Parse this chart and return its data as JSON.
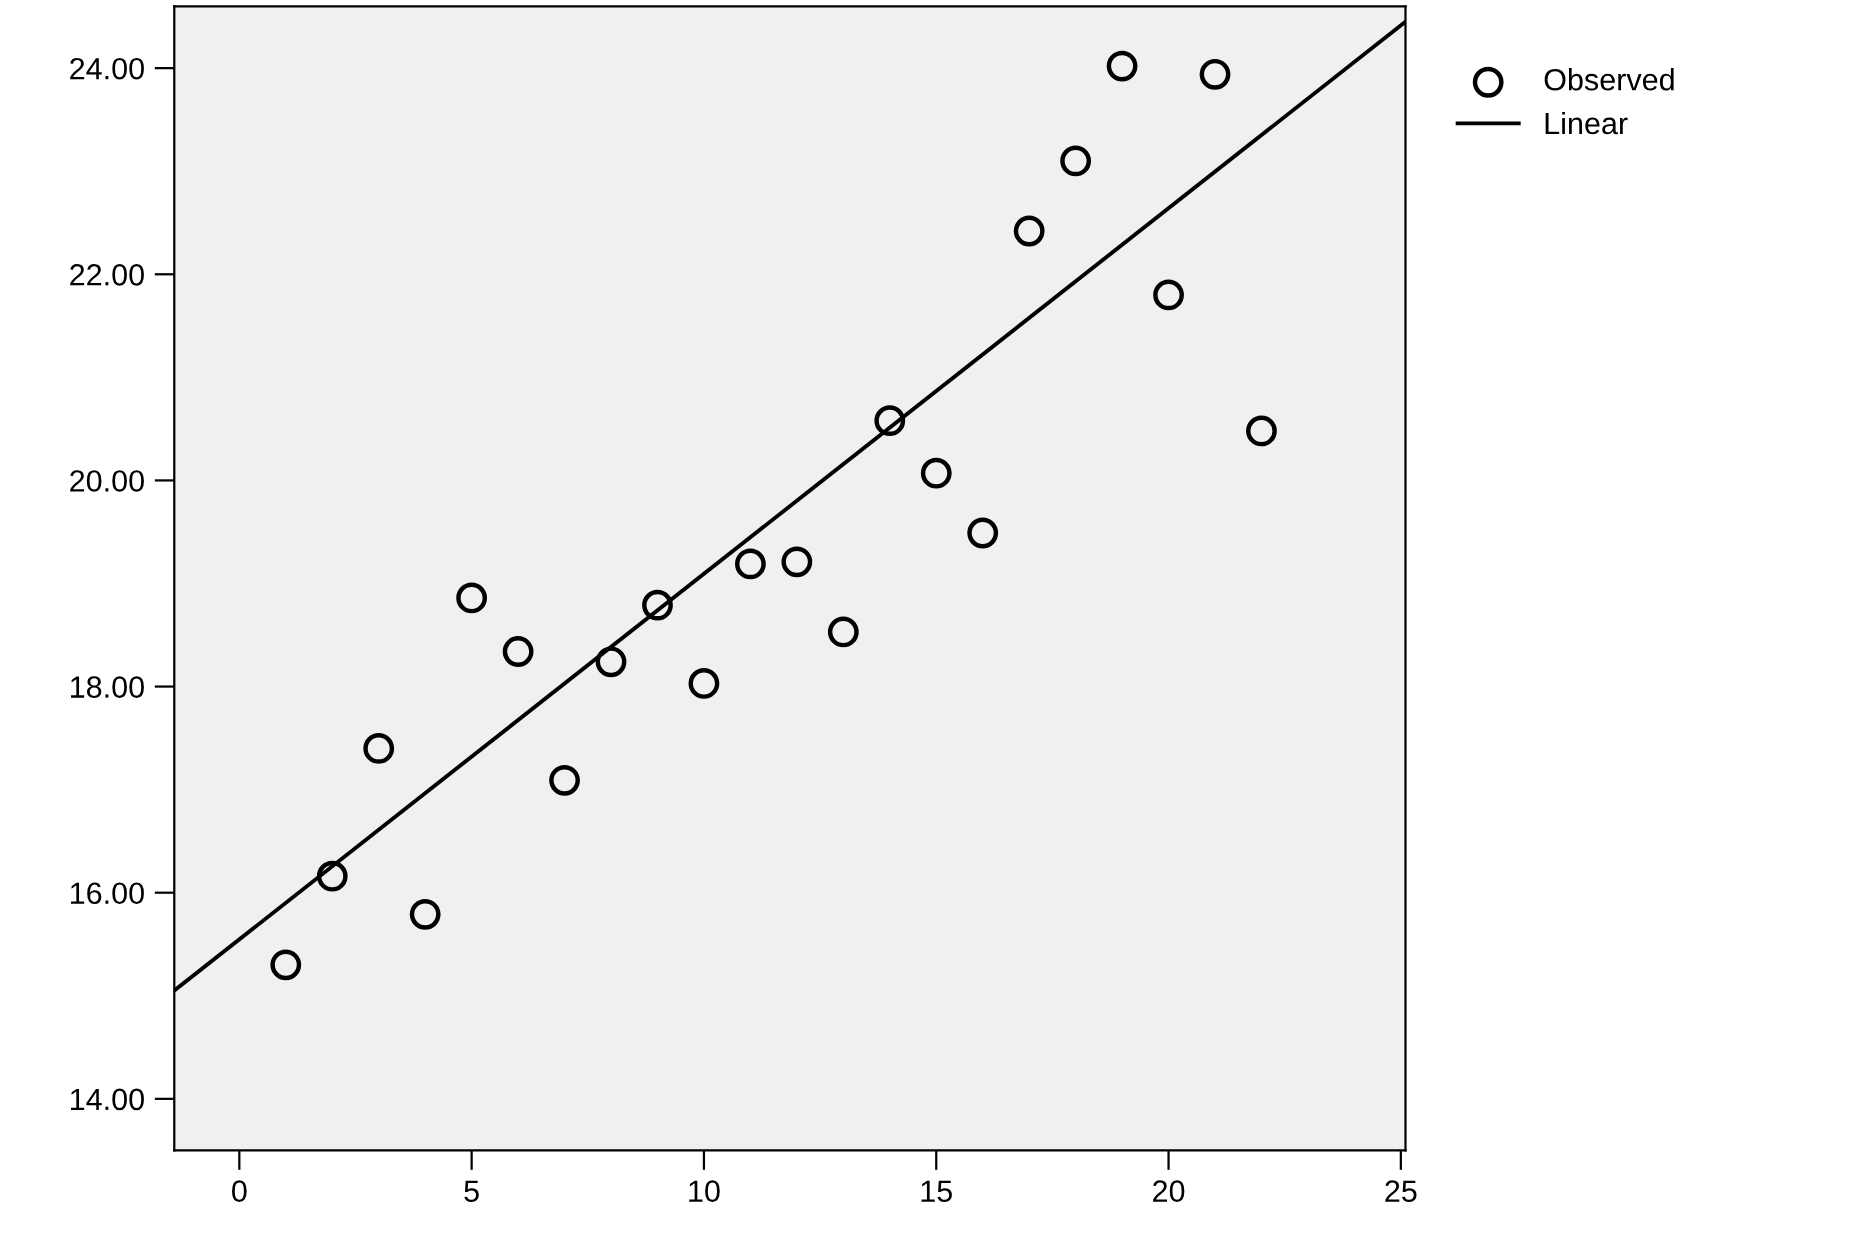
{
  "chart_data": {
    "type": "scatter",
    "xlim": [
      -1.4,
      25.1
    ],
    "ylim": [
      13.5,
      24.6
    ],
    "xticks": [
      0,
      5,
      10,
      15,
      20,
      25
    ],
    "yticks": [
      {
        "value": 14,
        "label": "14.00"
      },
      {
        "value": 16,
        "label": "16.00"
      },
      {
        "value": 18,
        "label": "18.00"
      },
      {
        "value": 20,
        "label": "20.00"
      },
      {
        "value": 22,
        "label": "22.00"
      },
      {
        "value": 24,
        "label": "24.00"
      }
    ],
    "grid": false,
    "legend": "right",
    "series": [
      {
        "name": "Observed",
        "type": "scatter",
        "marker": "circle",
        "color": "#000000",
        "x": [
          1,
          2,
          3,
          4,
          5,
          6,
          7,
          8,
          9,
          10,
          11,
          12,
          13,
          14,
          15,
          16,
          17,
          18,
          19,
          20,
          21,
          22
        ],
        "values": [
          15.3,
          16.16,
          17.4,
          15.79,
          18.86,
          18.34,
          17.09,
          18.24,
          18.79,
          18.03,
          19.19,
          19.21,
          18.53,
          20.58,
          20.07,
          19.49,
          22.42,
          23.1,
          24.02,
          21.8,
          23.94,
          20.48
        ]
      },
      {
        "name": "Linear",
        "type": "line",
        "marker": "none",
        "line_style": "solid",
        "color": "#000000",
        "x": [
          -1.4,
          25.1
        ],
        "values": [
          15.05,
          24.45
        ]
      }
    ]
  }
}
